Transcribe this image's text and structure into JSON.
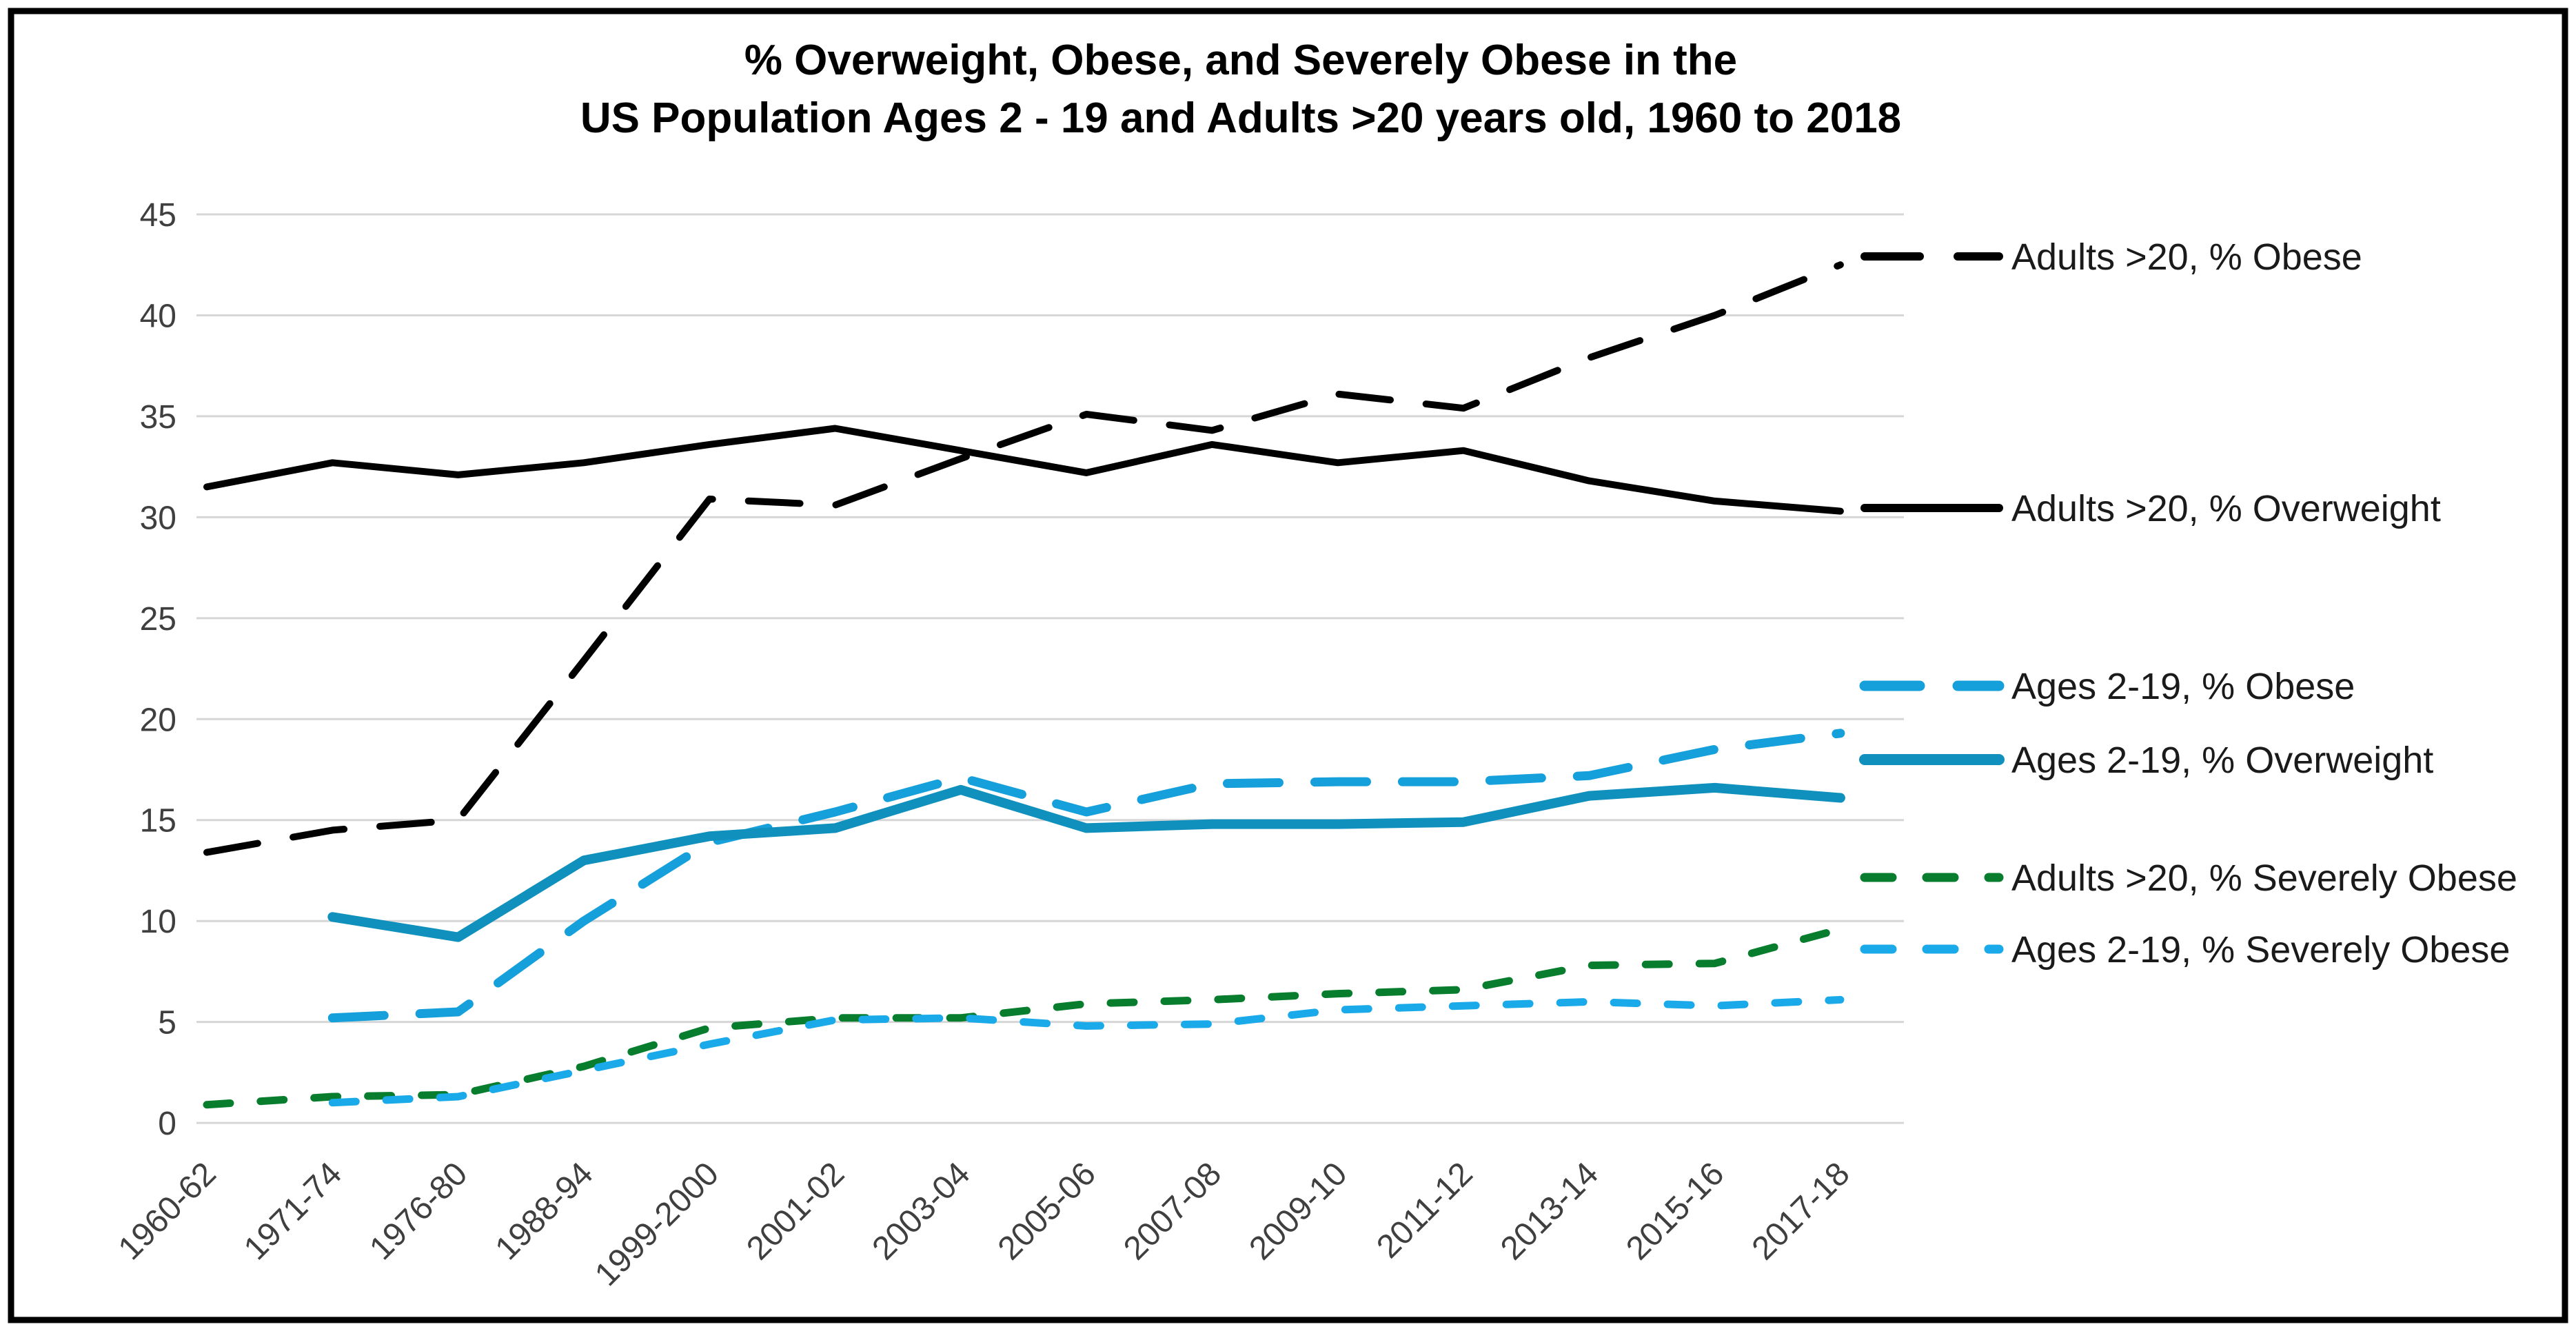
{
  "chart_data": {
    "type": "line",
    "title_line1": "% Overweight, Obese, and Severely Obese in the",
    "title_line2": "US Population Ages 2 - 19 and Adults >20 years old, 1960 to 2018",
    "categories": [
      "1960-62",
      "1971-74",
      "1976-80",
      "1988-94",
      "1999-2000",
      "2001-02",
      "2003-04",
      "2005-06",
      "2007-08",
      "2009-10",
      "2011-12",
      "2013-14",
      "2015-16",
      "2017-18"
    ],
    "ylabel": "",
    "xlabel": "",
    "ylim": [
      0,
      45
    ],
    "yticks": [
      0,
      5,
      10,
      15,
      20,
      25,
      30,
      35,
      40,
      45
    ],
    "grid": "horizontal",
    "legend_position": "right-inline",
    "series": [
      {
        "name": "Adults >20, % Obese",
        "color": "#000000",
        "style": "long-dash",
        "values": [
          13.4,
          14.5,
          15.0,
          22.9,
          30.9,
          30.6,
          32.9,
          35.1,
          34.3,
          36.1,
          35.4,
          37.9,
          40.0,
          42.5
        ]
      },
      {
        "name": "Adults >20, % Overweight",
        "color": "#000000",
        "style": "solid",
        "values": [
          31.5,
          32.7,
          32.1,
          32.7,
          33.6,
          34.4,
          33.3,
          32.2,
          33.6,
          32.7,
          33.3,
          31.8,
          30.8,
          30.3
        ]
      },
      {
        "name": "Ages 2-19, % Obese",
        "color": "#16a0db",
        "style": "long-dash",
        "values": [
          null,
          5.2,
          5.5,
          10.0,
          13.9,
          15.4,
          17.1,
          15.4,
          16.8,
          16.9,
          16.9,
          17.2,
          18.5,
          19.3
        ]
      },
      {
        "name": "Ages 2-19, % Overweight",
        "color": "#1090bc",
        "style": "solid",
        "values": [
          null,
          10.2,
          9.2,
          13.0,
          14.2,
          14.6,
          16.5,
          14.6,
          14.8,
          14.8,
          14.9,
          16.2,
          16.6,
          16.1
        ]
      },
      {
        "name": "Adults >20, % Severely Obese",
        "color": "#077d2d",
        "style": "short-dash",
        "values": [
          0.9,
          1.3,
          1.4,
          2.8,
          4.7,
          5.2,
          5.2,
          5.9,
          6.1,
          6.4,
          6.6,
          7.8,
          7.9,
          9.6
        ]
      },
      {
        "name": "Ages 2-19, % Severely Obese",
        "color": "#1baae9",
        "style": "short-dash",
        "values": [
          null,
          1.0,
          1.3,
          2.6,
          3.9,
          5.1,
          5.2,
          4.8,
          4.9,
          5.6,
          5.8,
          6.0,
          5.8,
          6.1
        ]
      }
    ]
  }
}
